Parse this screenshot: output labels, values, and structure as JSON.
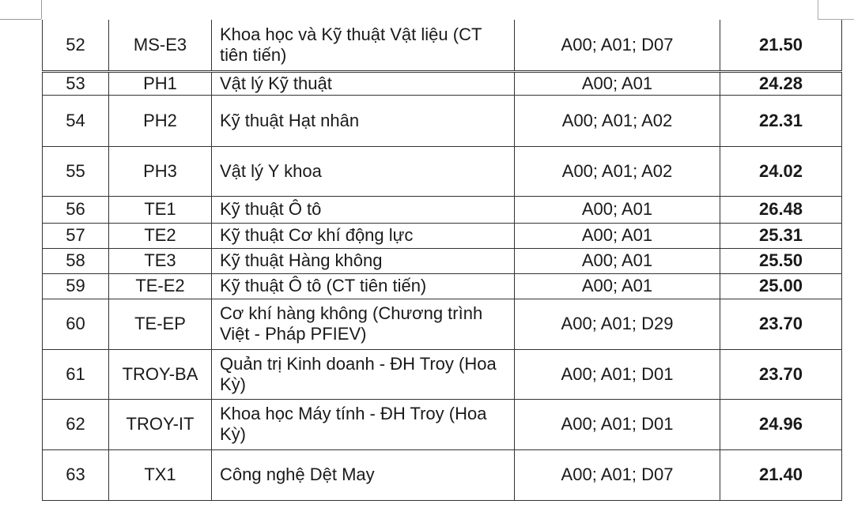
{
  "table": {
    "rows": [
      {
        "no": "52",
        "code": "MS-E3",
        "name": "Khoa học và Kỹ thuật Vật liệu (CT tiên tiến)",
        "groups": "A00; A01; D07",
        "score": "21.50"
      },
      {
        "no": "53",
        "code": "PH1",
        "name": "Vật lý Kỹ thuật",
        "groups": "A00; A01",
        "score": "24.28"
      },
      {
        "no": "54",
        "code": "PH2",
        "name": "Kỹ thuật Hạt nhân",
        "groups": "A00; A01; A02",
        "score": "22.31"
      },
      {
        "no": "55",
        "code": "PH3",
        "name": "Vật lý Y khoa",
        "groups": "A00; A01; A02",
        "score": "24.02"
      },
      {
        "no": "56",
        "code": "TE1",
        "name": "Kỹ thuật Ô tô",
        "groups": "A00; A01",
        "score": "26.48"
      },
      {
        "no": "57",
        "code": "TE2",
        "name": "Kỹ thuật Cơ khí động lực",
        "groups": "A00; A01",
        "score": "25.31"
      },
      {
        "no": "58",
        "code": "TE3",
        "name": "Kỹ thuật Hàng không",
        "groups": "A00; A01",
        "score": "25.50"
      },
      {
        "no": "59",
        "code": "TE-E2",
        "name": "Kỹ thuật Ô tô (CT tiên tiến)",
        "groups": "A00; A01",
        "score": "25.00"
      },
      {
        "no": "60",
        "code": "TE-EP",
        "name": "Cơ khí hàng không (Chương trình Việt - Pháp PFIEV)",
        "groups": "A00; A01; D29",
        "score": "23.70"
      },
      {
        "no": "61",
        "code": "TROY-BA",
        "name": "Quản trị Kinh doanh - ĐH Troy (Hoa Kỳ)",
        "groups": "A00; A01; D01",
        "score": "23.70"
      },
      {
        "no": "62",
        "code": "TROY-IT",
        "name": "Khoa học Máy tính - ĐH Troy (Hoa Kỳ)",
        "groups": "A00; A01; D01",
        "score": "24.96"
      },
      {
        "no": "63",
        "code": "TX1",
        "name": "Công nghệ Dệt May",
        "groups": "A00; A01; D07",
        "score": "21.40"
      }
    ]
  }
}
